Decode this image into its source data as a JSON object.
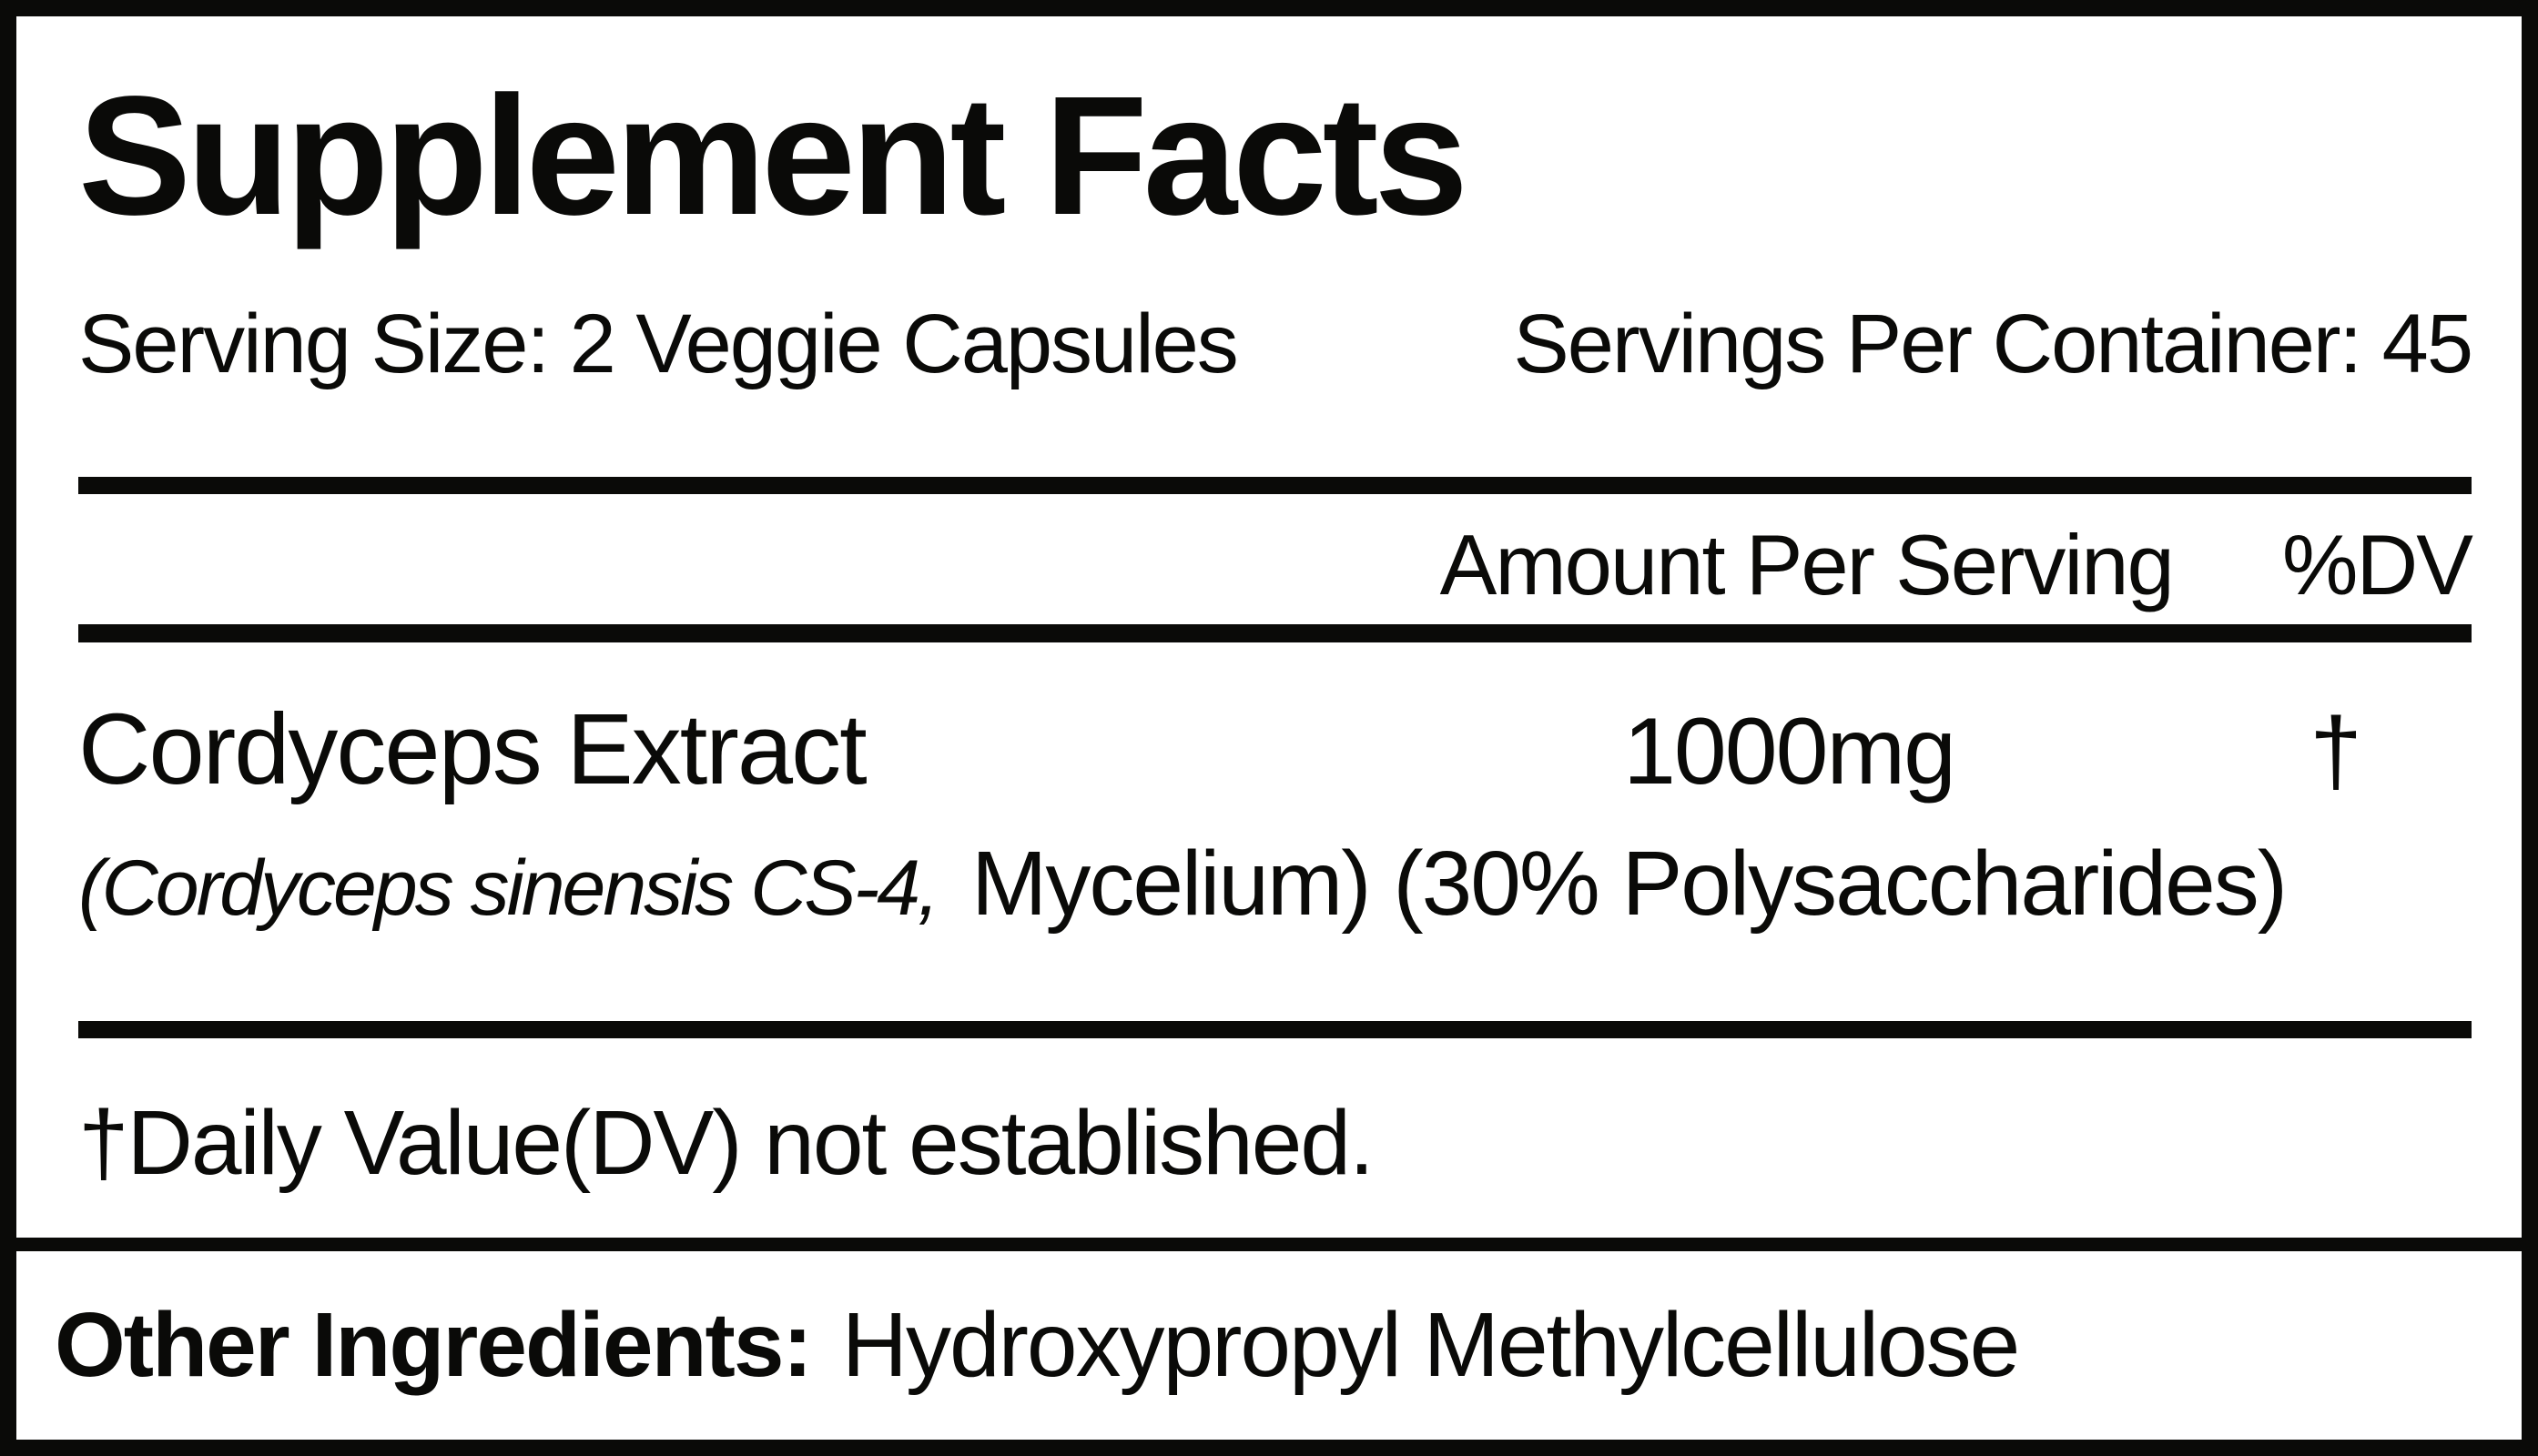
{
  "label": {
    "title": "Supplement Facts",
    "serving_size": "Serving Size: 2 Veggie Capsules",
    "servings_per_container": "Servings Per Container: 45",
    "columns": {
      "amount": "Amount Per Serving",
      "dv": "%DV"
    },
    "ingredients": [
      {
        "name": "Cordyceps Extract",
        "amount": "1000mg",
        "dv": "†",
        "detail_italic": "(Cordyceps sinensis CS-4,",
        "detail_regular": "Mycelium) (30% Polysaccharides)"
      }
    ],
    "footnote": "†Daily Value(DV) not established.",
    "other_ingredients": {
      "label": "Other Ingredients:",
      "value": "Hydroxypropyl Methylcellulose"
    },
    "colors": {
      "text": "#0a0a08",
      "background": "#ffffff",
      "border": "#0a0a08"
    }
  }
}
